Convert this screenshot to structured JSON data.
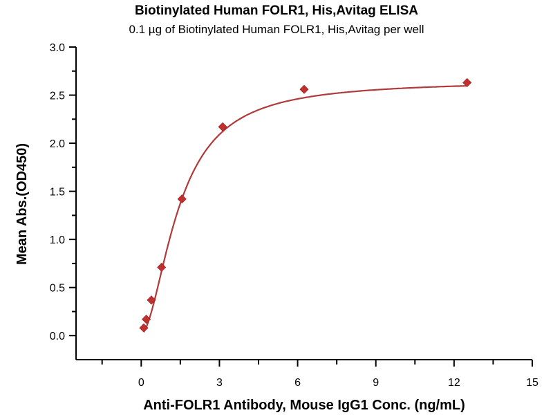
{
  "chart_data": {
    "type": "scatter",
    "title": "Biotinylated Human FOLR1, His,Avitag ELISA",
    "subtitle": "0.1 µg of Biotinylated Human FOLR1, His,Avitag per well",
    "xlabel": "Anti-FOLR1 Antibody, Mouse IgG1 Conc. (ng/mL)",
    "ylabel": "Mean Abs.(OD450)",
    "xlim": [
      -2.5,
      15
    ],
    "ylim": [
      -0.25,
      3.0
    ],
    "x_ticks": [
      0,
      3,
      6,
      9,
      12,
      15
    ],
    "x_tick_labels": [
      "0",
      "3",
      "6",
      "9",
      "12",
      "15"
    ],
    "x_minor_ticks": [
      -1.5,
      1.5,
      4.5,
      7.5,
      10.5,
      13.5
    ],
    "y_ticks": [
      0,
      0.5,
      1,
      1.5,
      2,
      2.5,
      3
    ],
    "y_tick_labels": [
      "0.0",
      "0.5",
      "1.0",
      "1.5",
      "2.0",
      "2.5",
      "3.0"
    ],
    "grid": false,
    "series": [
      {
        "name": "Mean Abs.",
        "marker": "diamond",
        "color": "#c0302e",
        "line_color": "#b03a3a",
        "x": [
          0.098,
          0.195,
          0.39,
          0.78,
          1.563,
          3.125,
          6.25,
          12.5
        ],
        "y": [
          0.08,
          0.17,
          0.37,
          0.71,
          1.42,
          2.17,
          2.56,
          2.63
        ],
        "fit": {
          "model": "4PL",
          "bottom": 0.02,
          "top": 2.65,
          "ec50": 1.45,
          "hill": 1.8
        }
      }
    ]
  }
}
